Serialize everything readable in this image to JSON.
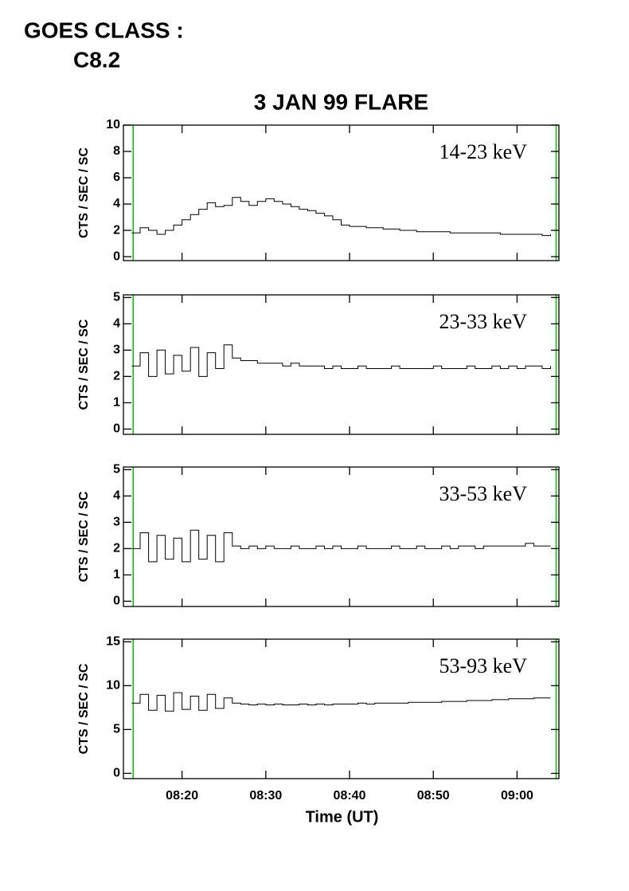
{
  "header": {
    "goes_label": "GOES CLASS :",
    "goes_class": "C8.2"
  },
  "chart_data": [
    {
      "type": "line",
      "title": "3 JAN 99 FLARE",
      "annotation": "14-23 keV",
      "ylabel": "CTS / SEC / SC",
      "color": "#000000",
      "marker_color": "#00c000",
      "markers": [
        "08:14:10",
        "09:04:40"
      ],
      "xlim": [
        "08:13",
        "09:05"
      ],
      "xticks": [
        "08:20",
        "08:30",
        "08:40",
        "08:50",
        "09:00"
      ],
      "ylim": [
        -0.3,
        10
      ],
      "yticks": [
        0,
        2,
        4,
        6,
        8,
        10
      ],
      "x": [
        "08:14",
        "08:15",
        "08:16",
        "08:17",
        "08:18",
        "08:19",
        "08:20",
        "08:21",
        "08:22",
        "08:23",
        "08:24",
        "08:25",
        "08:26",
        "08:27",
        "08:28",
        "08:29",
        "08:30",
        "08:31",
        "08:32",
        "08:33",
        "08:34",
        "08:35",
        "08:36",
        "08:37",
        "08:38",
        "08:39",
        "08:40",
        "08:41",
        "08:42",
        "08:43",
        "08:44",
        "08:45",
        "08:46",
        "08:47",
        "08:48",
        "08:49",
        "08:50",
        "08:51",
        "08:52",
        "08:53",
        "08:54",
        "08:55",
        "08:56",
        "08:57",
        "08:58",
        "08:59",
        "09:00",
        "09:01",
        "09:02",
        "09:03",
        "09:04"
      ],
      "values": [
        1.8,
        2.2,
        2.0,
        1.7,
        2.0,
        2.4,
        2.8,
        3.2,
        3.6,
        4.1,
        3.8,
        3.9,
        4.5,
        4.2,
        3.9,
        4.2,
        4.4,
        4.2,
        4.0,
        3.8,
        3.6,
        3.5,
        3.3,
        3.1,
        2.8,
        2.4,
        2.3,
        2.3,
        2.2,
        2.2,
        2.1,
        2.1,
        2.0,
        2.0,
        1.9,
        1.9,
        1.9,
        1.9,
        1.8,
        1.8,
        1.8,
        1.8,
        1.8,
        1.8,
        1.7,
        1.7,
        1.7,
        1.7,
        1.7,
        1.6,
        1.7
      ]
    },
    {
      "type": "line",
      "annotation": "23-33 keV",
      "ylabel": "CTS / SEC / SC",
      "color": "#000000",
      "marker_color": "#00c000",
      "markers": [
        "08:14:10",
        "09:04:40"
      ],
      "xlim": [
        "08:13",
        "09:05"
      ],
      "xticks": [
        "08:20",
        "08:30",
        "08:40",
        "08:50",
        "09:00"
      ],
      "ylim": [
        -0.2,
        5.1
      ],
      "yticks": [
        0,
        1,
        2,
        3,
        4,
        5
      ],
      "x": [
        "08:14",
        "08:15",
        "08:16",
        "08:17",
        "08:18",
        "08:19",
        "08:20",
        "08:21",
        "08:22",
        "08:23",
        "08:24",
        "08:25",
        "08:26",
        "08:27",
        "08:28",
        "08:29",
        "08:30",
        "08:31",
        "08:32",
        "08:33",
        "08:34",
        "08:35",
        "08:36",
        "08:37",
        "08:38",
        "08:39",
        "08:40",
        "08:41",
        "08:42",
        "08:43",
        "08:44",
        "08:45",
        "08:46",
        "08:47",
        "08:48",
        "08:49",
        "08:50",
        "08:51",
        "08:52",
        "08:53",
        "08:54",
        "08:55",
        "08:56",
        "08:57",
        "08:58",
        "08:59",
        "09:00",
        "09:01",
        "09:02",
        "09:03",
        "09:04"
      ],
      "values": [
        2.4,
        2.9,
        2.0,
        3.0,
        2.1,
        2.8,
        2.2,
        3.1,
        2.0,
        2.9,
        2.3,
        3.2,
        2.7,
        2.6,
        2.6,
        2.5,
        2.5,
        2.5,
        2.4,
        2.5,
        2.4,
        2.4,
        2.4,
        2.3,
        2.4,
        2.3,
        2.3,
        2.4,
        2.3,
        2.3,
        2.3,
        2.4,
        2.3,
        2.3,
        2.3,
        2.3,
        2.4,
        2.3,
        2.3,
        2.3,
        2.4,
        2.3,
        2.3,
        2.4,
        2.3,
        2.4,
        2.3,
        2.4,
        2.4,
        2.3,
        2.4
      ]
    },
    {
      "type": "line",
      "annotation": "33-53 keV",
      "ylabel": "CTS / SEC / SC",
      "color": "#000000",
      "marker_color": "#00c000",
      "markers": [
        "08:14:10",
        "09:04:40"
      ],
      "xlim": [
        "08:13",
        "09:05"
      ],
      "xticks": [
        "08:20",
        "08:30",
        "08:40",
        "08:50",
        "09:00"
      ],
      "ylim": [
        -0.2,
        5.1
      ],
      "yticks": [
        0,
        1,
        2,
        3,
        4,
        5
      ],
      "x": [
        "08:14",
        "08:15",
        "08:16",
        "08:17",
        "08:18",
        "08:19",
        "08:20",
        "08:21",
        "08:22",
        "08:23",
        "08:24",
        "08:25",
        "08:26",
        "08:27",
        "08:28",
        "08:29",
        "08:30",
        "08:31",
        "08:32",
        "08:33",
        "08:34",
        "08:35",
        "08:36",
        "08:37",
        "08:38",
        "08:39",
        "08:40",
        "08:41",
        "08:42",
        "08:43",
        "08:44",
        "08:45",
        "08:46",
        "08:47",
        "08:48",
        "08:49",
        "08:50",
        "08:51",
        "08:52",
        "08:53",
        "08:54",
        "08:55",
        "08:56",
        "08:57",
        "08:58",
        "08:59",
        "09:00",
        "09:01",
        "09:02",
        "09:03",
        "09:04"
      ],
      "values": [
        2.0,
        2.6,
        1.5,
        2.5,
        1.6,
        2.4,
        1.5,
        2.7,
        1.6,
        2.5,
        1.5,
        2.6,
        2.1,
        2.0,
        2.1,
        2.0,
        2.1,
        2.0,
        2.0,
        2.1,
        2.0,
        2.0,
        2.1,
        2.0,
        2.1,
        2.0,
        2.0,
        2.1,
        2.0,
        2.0,
        2.0,
        2.1,
        2.0,
        2.0,
        2.1,
        2.0,
        2.0,
        2.1,
        2.0,
        2.1,
        2.1,
        2.0,
        2.1,
        2.1,
        2.1,
        2.1,
        2.1,
        2.2,
        2.1,
        2.1,
        2.1
      ]
    },
    {
      "type": "line",
      "annotation": "53-93 keV",
      "ylabel": "CTS / SEC / SC",
      "xlabel": "Time (UT)",
      "color": "#000000",
      "marker_color": "#00c000",
      "markers": [
        "08:14:10",
        "09:04:40"
      ],
      "xlim": [
        "08:13",
        "09:05"
      ],
      "xticks": [
        "08:20",
        "08:30",
        "08:40",
        "08:50",
        "09:00"
      ],
      "ylim": [
        -0.6,
        15.3
      ],
      "yticks": [
        0,
        5,
        10,
        15
      ],
      "x": [
        "08:14",
        "08:15",
        "08:16",
        "08:17",
        "08:18",
        "08:19",
        "08:20",
        "08:21",
        "08:22",
        "08:23",
        "08:24",
        "08:25",
        "08:26",
        "08:27",
        "08:28",
        "08:29",
        "08:30",
        "08:31",
        "08:32",
        "08:33",
        "08:34",
        "08:35",
        "08:36",
        "08:37",
        "08:38",
        "08:39",
        "08:40",
        "08:41",
        "08:42",
        "08:43",
        "08:44",
        "08:45",
        "08:46",
        "08:47",
        "08:48",
        "08:49",
        "08:50",
        "08:51",
        "08:52",
        "08:53",
        "08:54",
        "08:55",
        "08:56",
        "08:57",
        "08:58",
        "08:59",
        "09:00",
        "09:01",
        "09:02",
        "09:03",
        "09:04"
      ],
      "values": [
        8.0,
        9.0,
        7.2,
        8.9,
        7.1,
        9.2,
        7.3,
        8.8,
        7.2,
        9.0,
        7.4,
        8.6,
        8.0,
        7.9,
        7.8,
        7.9,
        7.8,
        7.9,
        7.8,
        7.8,
        7.9,
        7.8,
        7.9,
        7.8,
        7.9,
        7.9,
        7.9,
        8.0,
        7.9,
        8.0,
        8.0,
        8.0,
        8.0,
        8.1,
        8.1,
        8.1,
        8.1,
        8.2,
        8.2,
        8.2,
        8.3,
        8.3,
        8.3,
        8.4,
        8.4,
        8.5,
        8.5,
        8.5,
        8.6,
        8.6,
        8.6
      ]
    }
  ]
}
